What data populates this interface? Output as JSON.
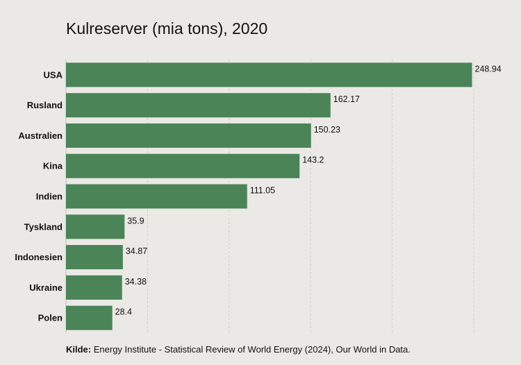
{
  "chart_data": {
    "type": "bar",
    "orientation": "horizontal",
    "title": "Kulreserver (mia tons), 2020",
    "categories": [
      "USA",
      "Rusland",
      "Australien",
      "Kina",
      "Indien",
      "Tyskland",
      "Indonesien",
      "Ukraine",
      "Polen"
    ],
    "values": [
      248.94,
      162.17,
      150.23,
      143.2,
      111.05,
      35.9,
      34.87,
      34.38,
      28.4
    ],
    "value_labels": [
      "248.94",
      "162.17",
      "150.23",
      "143.2",
      "111.05",
      "35.9",
      "34.87",
      "34.38",
      "28.4"
    ],
    "xlim": [
      0,
      250
    ],
    "grid": true,
    "bar_color": "#4a8457"
  },
  "source": {
    "label": "Kilde:",
    "text": " Energy Institute - Statistical Review of World Energy (2024), Our World in Data."
  }
}
